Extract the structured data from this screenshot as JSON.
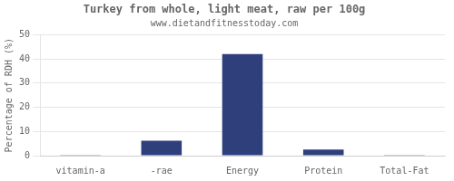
{
  "chart_data": {
    "type": "bar",
    "title": "Turkey from whole, light meat, raw per 100g",
    "subtitle": "www.dietandfitnesstoday.com",
    "ylabel": "Percentage of RDH (%)",
    "categories": [
      "vitamin-a",
      "-rae",
      "Energy",
      "Protein",
      "Total-Fat"
    ],
    "values": [
      0.1,
      6.2,
      42.0,
      2.5,
      0.1
    ],
    "color": "#2e3f7c",
    "ylim": [
      0,
      50
    ],
    "yticks": [
      0,
      10,
      20,
      30,
      40,
      50
    ],
    "grid": true
  }
}
